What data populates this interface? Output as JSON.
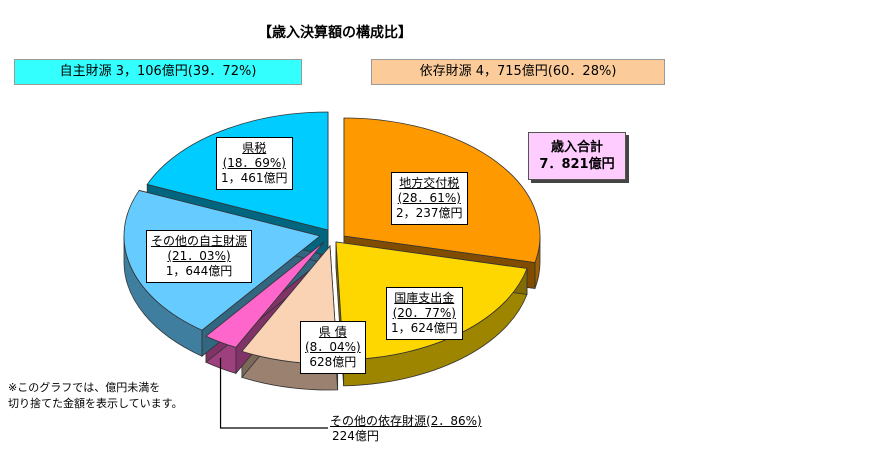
{
  "title": "【歳入決算額の構成比】",
  "groups": {
    "self": {
      "label": "自主財源 3，106億円(39．72%)",
      "color": "#33ffff"
    },
    "dependent": {
      "label": "依存財源 4，715億円(60．28%)",
      "color": "#fbcc9a"
    }
  },
  "total": {
    "label": "歳入合計",
    "value": "7．821億円"
  },
  "note": [
    "※このグラフでは、億円未満を",
    "切り捨てた金額を表示しています。"
  ],
  "chart_data": {
    "type": "pie",
    "style": "3d-exploded",
    "slices": [
      {
        "name": "地方交付税",
        "percent_label": "(28．61%)",
        "amount_label": "2，237億円",
        "value": 28.61,
        "amount": 2237,
        "color": "#ff9900"
      },
      {
        "name": "国庫支出金",
        "percent_label": "(20．77%)",
        "amount_label": "1，624億円",
        "value": 20.77,
        "amount": 1624,
        "color": "#ffd700"
      },
      {
        "name": "県 債",
        "percent_label": "(8．04%)",
        "amount_label": "628億円",
        "value": 8.04,
        "amount": 628,
        "color": "#fad2b4"
      },
      {
        "name": "その他の依存財源",
        "percent_label": "(2．86%)",
        "amount_label": "224億円",
        "value": 2.86,
        "amount": 224,
        "color": "#ff66cc"
      },
      {
        "name": "その他の自主財源",
        "percent_label": "(21．03%)",
        "amount_label": "1，644億円",
        "value": 21.03,
        "amount": 1644,
        "color": "#66ccff"
      },
      {
        "name": "県税",
        "percent_label": "(18．69%)",
        "amount_label": "1，461億円",
        "value": 18.69,
        "amount": 1461,
        "color": "#00ccff"
      }
    ],
    "legend": "none"
  }
}
